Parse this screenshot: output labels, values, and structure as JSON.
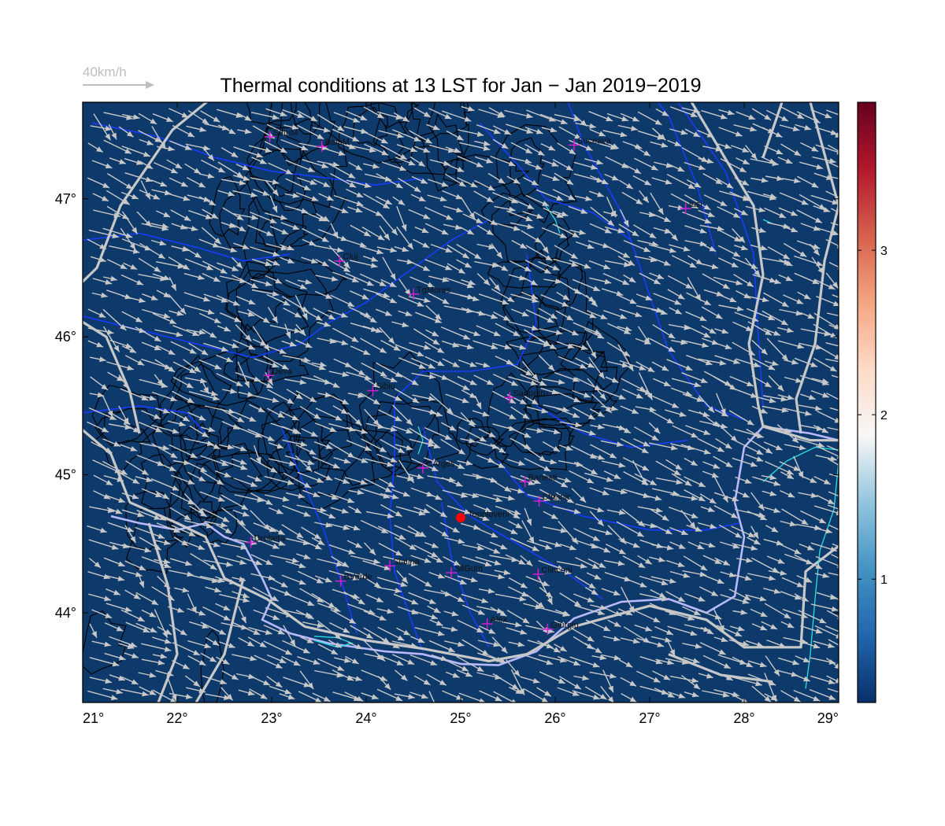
{
  "title": "Thermal conditions at 13 LST for Jan − Jan  2019−2019",
  "reference_arrow": {
    "label": "40km/h",
    "speed_kmh": 40
  },
  "map": {
    "lon_range": [
      21,
      29
    ],
    "lat_range": [
      43.35,
      47.7
    ],
    "field_value": 0.3,
    "x_ticks": [
      {
        "value": 21,
        "label": "21°"
      },
      {
        "value": 22,
        "label": "22°"
      },
      {
        "value": 23,
        "label": "23°"
      },
      {
        "value": 24,
        "label": "24°"
      },
      {
        "value": 25,
        "label": "25°"
      },
      {
        "value": 26,
        "label": "26°"
      },
      {
        "value": 27,
        "label": "27°"
      },
      {
        "value": 28,
        "label": "28°"
      },
      {
        "value": 29,
        "label": "29°"
      }
    ],
    "y_ticks": [
      {
        "value": 44,
        "label": "44°"
      },
      {
        "value": 45,
        "label": "45°"
      },
      {
        "value": 46,
        "label": "46°"
      },
      {
        "value": 47,
        "label": "47°"
      }
    ],
    "colors": {
      "background": "#0d3a6b",
      "arrow": "#c8c8c8",
      "border": "#c8c8c8",
      "river": "#1a3cff",
      "danube": "#b8b8ff",
      "lake": "#28e0e0",
      "contour": "#000000",
      "station": "#d020d0",
      "highlight_station": "#ff0000"
    }
  },
  "stations": [
    {
      "name": "SatuM",
      "lon": 22.98,
      "lat": 47.45
    },
    {
      "name": "BaiaM",
      "lon": 23.53,
      "lat": 47.38
    },
    {
      "name": "Suceava",
      "lon": 26.2,
      "lat": 47.39
    },
    {
      "name": "Iasi",
      "lon": 27.38,
      "lat": 46.93
    },
    {
      "name": "Cluj",
      "lon": 23.72,
      "lat": 46.55
    },
    {
      "name": "TgMures",
      "lon": 24.5,
      "lat": 46.31
    },
    {
      "name": "Deva",
      "lon": 22.97,
      "lat": 45.72
    },
    {
      "name": "Sibiu",
      "lon": 24.07,
      "lat": 45.61
    },
    {
      "name": "Sanpetru",
      "lon": 25.52,
      "lat": 45.56
    },
    {
      "name": "CArges",
      "lon": 24.6,
      "lat": 45.05
    },
    {
      "name": "Banesti",
      "lon": 25.68,
      "lat": 44.95
    },
    {
      "name": "Strejnic",
      "lon": 25.83,
      "lat": 44.81
    },
    {
      "name": "Drobeta",
      "lon": 22.78,
      "lat": 44.51
    },
    {
      "name": "Slatina",
      "lon": 24.25,
      "lat": 44.34
    },
    {
      "name": "SilGum",
      "lon": 24.9,
      "lat": 44.29
    },
    {
      "name": "Clinceni",
      "lon": 25.82,
      "lat": 44.28
    },
    {
      "name": "BVerde",
      "lon": 23.73,
      "lat": 44.23
    },
    {
      "name": "Alex",
      "lon": 25.28,
      "lat": 43.92
    },
    {
      "name": "Giurgiu",
      "lon": 25.92,
      "lat": 43.88
    }
  ],
  "highlight_station": {
    "name": "Topoloveni",
    "lon": 25.0,
    "lat": 44.69
  },
  "colorbar": {
    "min": 0.25,
    "max": 3.9,
    "ticks": [
      {
        "value": 1,
        "label": "1"
      },
      {
        "value": 2,
        "label": "2"
      },
      {
        "value": 3,
        "label": "3"
      }
    ],
    "stops": [
      "#08306b",
      "#2166ac",
      "#4393c3",
      "#92c5de",
      "#f7f7f7",
      "#fddbc7",
      "#f4a582",
      "#d6604d",
      "#b2182b",
      "#67001f"
    ]
  }
}
